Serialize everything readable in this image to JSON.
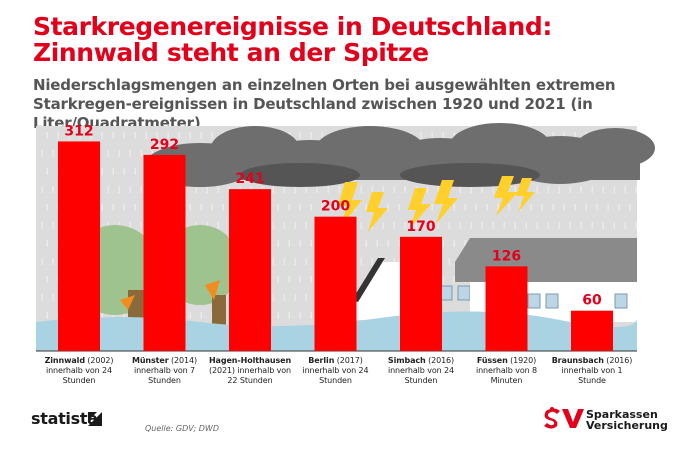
{
  "header": {
    "title_line1": "Starkregenereignisse in Deutschland:",
    "title_line2": "Zinnwald steht an der Spitze",
    "subtitle": "Niederschlagsmengen an einzelnen Orten bei ausgewählten extremen Starkregen-ereignissen in Deutschland zwischen 1920 und 2021 (in Liter/Quadratmeter)"
  },
  "chart_data": {
    "type": "bar",
    "title": "Starkregenereignisse in Deutschland: Zinnwald steht an der Spitze",
    "subtitle": "Niederschlagsmengen an einzelnen Orten bei ausgewählten extremen Starkregen-ereignissen in Deutschland zwischen 1920 und 2021 (in Liter/Quadratmeter)",
    "categories": [
      {
        "place": "Zinnwald",
        "year": "(2002)",
        "detail": "innerhalb von 24 Stunden"
      },
      {
        "place": "Münster",
        "year": "(2014)",
        "detail": "innerhalb von 7 Stunden"
      },
      {
        "place": "Hagen-Holthausen",
        "year": "(2021) innerhalb von 22 Stunden",
        "detail": ""
      },
      {
        "place": "Berlin",
        "year": "(2017)",
        "detail": "innerhalb von 24 Stunden"
      },
      {
        "place": "Simbach",
        "year": "(2016)",
        "detail": "innerhalb von 24 Stunden"
      },
      {
        "place": "Füssen",
        "year": "(1920)",
        "detail": "innerhalb von 8 Minuten"
      },
      {
        "place": "Braunsbach",
        "year": "(2016)",
        "detail": "innerhalb von 1 Stunde"
      }
    ],
    "values": [
      312,
      292,
      241,
      200,
      170,
      126,
      60
    ],
    "ylim": [
      0,
      335
    ],
    "grid": false,
    "bar_color": "#ff0000",
    "label_color": "#e2001a"
  },
  "footer": {
    "statista": "statista",
    "source": "Quelle: GDV; DWD",
    "brand_line1": "Sparkassen",
    "brand_line2": "Versicherung"
  }
}
